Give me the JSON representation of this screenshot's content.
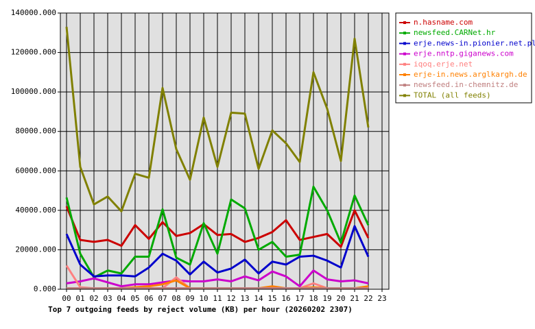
{
  "chart_data": {
    "type": "line",
    "title": "Top 7 outgoing feeds by reject volume (KB) per hour (20260202 2307)",
    "categories": [
      "00",
      "01",
      "02",
      "03",
      "04",
      "05",
      "06",
      "07",
      "08",
      "09",
      "10",
      "11",
      "12",
      "13",
      "14",
      "15",
      "16",
      "17",
      "18",
      "19",
      "20",
      "21",
      "22",
      "23"
    ],
    "ylim": [
      0,
      140000
    ],
    "yticks": [
      {
        "value": 0,
        "label": "0.000"
      },
      {
        "value": 20000,
        "label": "20000.000"
      },
      {
        "value": 40000,
        "label": "40000.000"
      },
      {
        "value": 60000,
        "label": "60000.000"
      },
      {
        "value": 80000,
        "label": "80000.000"
      },
      {
        "value": 100000,
        "label": "100000.000"
      },
      {
        "value": 120000,
        "label": "120000.000"
      },
      {
        "value": 140000,
        "label": "140000.000"
      }
    ],
    "grid": true,
    "legend": "top-right",
    "series": [
      {
        "name": "n.hasname.com",
        "color": "#cc0000",
        "values": [
          42000,
          25000,
          24000,
          25000,
          22000,
          32500,
          25500,
          34000,
          27000,
          28500,
          33000,
          27500,
          28000,
          24000,
          26000,
          29000,
          35000,
          25000,
          26500,
          28000,
          21500,
          40000,
          26000,
          null
        ]
      },
      {
        "name": "newsfeed.CARNet.hr",
        "color": "#00aa00",
        "values": [
          46500,
          18000,
          6000,
          9500,
          8000,
          16500,
          16500,
          40500,
          16000,
          12500,
          33500,
          18000,
          45500,
          41000,
          20000,
          24000,
          16500,
          17500,
          52000,
          40000,
          23500,
          47500,
          32500,
          null
        ]
      },
      {
        "name": "erje.news-in.pionier.net.pl",
        "color": "#0000cc",
        "values": [
          28000,
          12500,
          6500,
          7000,
          7000,
          6500,
          11000,
          18000,
          14500,
          7500,
          14000,
          8500,
          10500,
          15000,
          8000,
          14000,
          12500,
          16500,
          17000,
          14500,
          11000,
          32000,
          16500,
          null
        ]
      },
      {
        "name": "erje.nntp.giganews.com",
        "color": "#cc00cc",
        "values": [
          3000,
          4000,
          5500,
          3500,
          1500,
          2500,
          2500,
          3500,
          4500,
          4000,
          4000,
          5000,
          4000,
          6500,
          4500,
          9000,
          6500,
          1500,
          9500,
          5000,
          4000,
          4500,
          3000,
          null
        ]
      },
      {
        "name": "iqoq.erje.net",
        "color": "#ff8080",
        "values": [
          12000,
          1000,
          500,
          500,
          500,
          500,
          500,
          500,
          6000,
          500,
          500,
          500,
          500,
          500,
          500,
          1000,
          500,
          500,
          3000,
          500,
          500,
          500,
          1000,
          null
        ]
      },
      {
        "name": "erje-in.news.arglkargh.de",
        "color": "#ff8000",
        "values": [
          500,
          500,
          500,
          500,
          500,
          1000,
          1500,
          2500,
          4500,
          500,
          500,
          500,
          500,
          500,
          500,
          1500,
          500,
          500,
          1000,
          500,
          500,
          500,
          1500,
          null
        ]
      },
      {
        "name": "newsfeed.in-chemnitz.de",
        "color": "#c08080",
        "values": [
          500,
          500,
          500,
          500,
          500,
          500,
          500,
          500,
          500,
          500,
          500,
          500,
          500,
          500,
          500,
          500,
          500,
          500,
          500,
          500,
          500,
          500,
          500,
          null
        ]
      },
      {
        "name": "TOTAL (all feeds)",
        "color": "#808000",
        "values": [
          133000,
          62000,
          43000,
          47000,
          39500,
          58500,
          56500,
          102000,
          71000,
          55500,
          87000,
          62000,
          89500,
          89000,
          61000,
          80500,
          74000,
          64500,
          110000,
          91500,
          65000,
          127000,
          82000,
          null
        ]
      }
    ]
  }
}
